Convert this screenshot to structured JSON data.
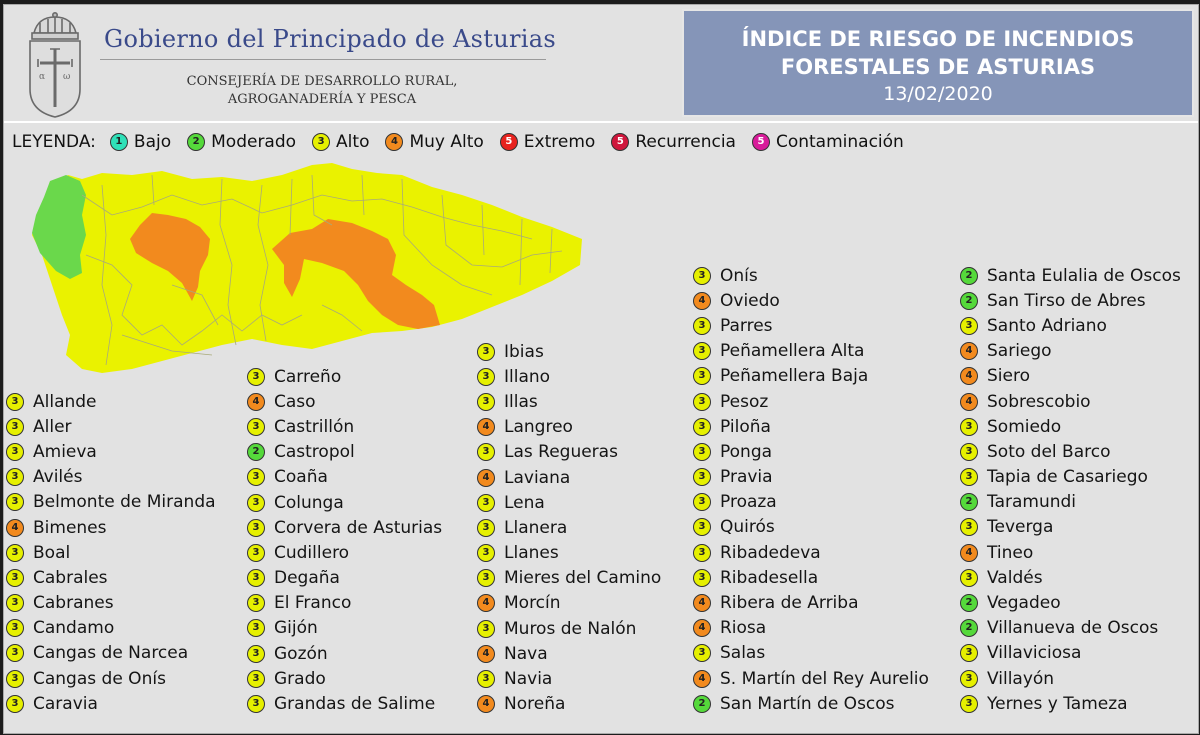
{
  "header": {
    "government": "Gobierno del Principado de Asturias",
    "department_line1": "CONSEJERÍA DE DESARROLLO RURAL,",
    "department_line2": "AGROGANADERÍA Y PESCA",
    "index_title_line1": "ÍNDICE DE RIESGO DE INCENDIOS",
    "index_title_line2": "FORESTALES DE ASTURIAS",
    "date": "13/02/2020"
  },
  "legend": {
    "label": "LEYENDA:",
    "items": [
      {
        "level": "1",
        "label": "Bajo",
        "color": "#2fe0b8"
      },
      {
        "level": "2",
        "label": "Moderado",
        "color": "#55d93b"
      },
      {
        "level": "3",
        "label": "Alto",
        "color": "#e6f000"
      },
      {
        "level": "4",
        "label": "Muy Alto",
        "color": "#f28a1e"
      },
      {
        "level": "5",
        "label": "Extremo",
        "color": "#e8231f"
      },
      {
        "level": "5",
        "label": "Recurrencia",
        "color": "#d0163c"
      },
      {
        "level": "5",
        "label": "Contaminación",
        "color": "#d81b9a"
      }
    ]
  },
  "colors": {
    "1": "#2fe0b8",
    "2": "#55d93b",
    "3": "#e6f000",
    "4": "#f28a1e"
  },
  "map": {
    "colors": {
      "alto": "#eaf200",
      "muy_alto": "#f28a1e",
      "moderado": "#6ad84b",
      "border": "#a8aa7a"
    }
  },
  "columns": [
    [
      {
        "level": "3",
        "name": "Allande"
      },
      {
        "level": "3",
        "name": "Aller"
      },
      {
        "level": "3",
        "name": "Amieva"
      },
      {
        "level": "3",
        "name": "Avilés"
      },
      {
        "level": "3",
        "name": "Belmonte de Miranda"
      },
      {
        "level": "4",
        "name": "Bimenes"
      },
      {
        "level": "3",
        "name": "Boal"
      },
      {
        "level": "3",
        "name": "Cabrales"
      },
      {
        "level": "3",
        "name": "Cabranes"
      },
      {
        "level": "3",
        "name": "Candamo"
      },
      {
        "level": "3",
        "name": "Cangas de Narcea"
      },
      {
        "level": "3",
        "name": "Cangas de Onís"
      },
      {
        "level": "3",
        "name": "Caravia"
      }
    ],
    [
      {
        "level": "3",
        "name": "Carreño"
      },
      {
        "level": "4",
        "name": "Caso"
      },
      {
        "level": "3",
        "name": "Castrillón"
      },
      {
        "level": "2",
        "name": "Castropol"
      },
      {
        "level": "3",
        "name": "Coaña"
      },
      {
        "level": "3",
        "name": "Colunga"
      },
      {
        "level": "3",
        "name": "Corvera de Asturias"
      },
      {
        "level": "3",
        "name": "Cudillero"
      },
      {
        "level": "3",
        "name": "Degaña"
      },
      {
        "level": "3",
        "name": "El Franco"
      },
      {
        "level": "3",
        "name": "Gijón"
      },
      {
        "level": "3",
        "name": "Gozón"
      },
      {
        "level": "3",
        "name": "Grado"
      },
      {
        "level": "3",
        "name": "Grandas de Salime"
      }
    ],
    [
      {
        "level": "3",
        "name": "Ibias"
      },
      {
        "level": "3",
        "name": "Illano"
      },
      {
        "level": "3",
        "name": "Illas"
      },
      {
        "level": "4",
        "name": "Langreo"
      },
      {
        "level": "3",
        "name": "Las Regueras"
      },
      {
        "level": "4",
        "name": "Laviana"
      },
      {
        "level": "3",
        "name": "Lena"
      },
      {
        "level": "3",
        "name": "Llanera"
      },
      {
        "level": "3",
        "name": "Llanes"
      },
      {
        "level": "3",
        "name": "Mieres del Camino"
      },
      {
        "level": "4",
        "name": "Morcín"
      },
      {
        "level": "3",
        "name": "Muros de Nalón"
      },
      {
        "level": "4",
        "name": "Nava"
      },
      {
        "level": "3",
        "name": "Navia"
      },
      {
        "level": "4",
        "name": "Noreña"
      }
    ],
    [
      {
        "level": "3",
        "name": "Onís"
      },
      {
        "level": "4",
        "name": "Oviedo"
      },
      {
        "level": "3",
        "name": "Parres"
      },
      {
        "level": "3",
        "name": "Peñamellera Alta"
      },
      {
        "level": "3",
        "name": "Peñamellera Baja"
      },
      {
        "level": "3",
        "name": "Pesoz"
      },
      {
        "level": "3",
        "name": "Piloña"
      },
      {
        "level": "3",
        "name": "Ponga"
      },
      {
        "level": "3",
        "name": "Pravia"
      },
      {
        "level": "3",
        "name": "Proaza"
      },
      {
        "level": "3",
        "name": "Quirós"
      },
      {
        "level": "3",
        "name": "Ribadedeva"
      },
      {
        "level": "3",
        "name": "Ribadesella"
      },
      {
        "level": "4",
        "name": "Ribera de Arriba"
      },
      {
        "level": "4",
        "name": "Riosa"
      },
      {
        "level": "3",
        "name": "Salas"
      },
      {
        "level": "4",
        "name": "S. Martín del Rey Aurelio"
      },
      {
        "level": "2",
        "name": "San Martín de Oscos"
      }
    ],
    [
      {
        "level": "2",
        "name": "Santa Eulalia de Oscos"
      },
      {
        "level": "2",
        "name": "San Tirso de Abres"
      },
      {
        "level": "3",
        "name": "Santo Adriano"
      },
      {
        "level": "4",
        "name": "Sariego"
      },
      {
        "level": "4",
        "name": "Siero"
      },
      {
        "level": "4",
        "name": "Sobrescobio"
      },
      {
        "level": "3",
        "name": "Somiedo"
      },
      {
        "level": "3",
        "name": "Soto del Barco"
      },
      {
        "level": "3",
        "name": "Tapia de Casariego"
      },
      {
        "level": "2",
        "name": "Taramundi"
      },
      {
        "level": "3",
        "name": "Teverga"
      },
      {
        "level": "4",
        "name": "Tineo"
      },
      {
        "level": "3",
        "name": "Valdés"
      },
      {
        "level": "2",
        "name": "Vegadeo"
      },
      {
        "level": "2",
        "name": "Villanueva de Oscos"
      },
      {
        "level": "3",
        "name": "Villaviciosa"
      },
      {
        "level": "3",
        "name": "Villayón"
      },
      {
        "level": "3",
        "name": "Yernes y Tameza"
      }
    ]
  ]
}
